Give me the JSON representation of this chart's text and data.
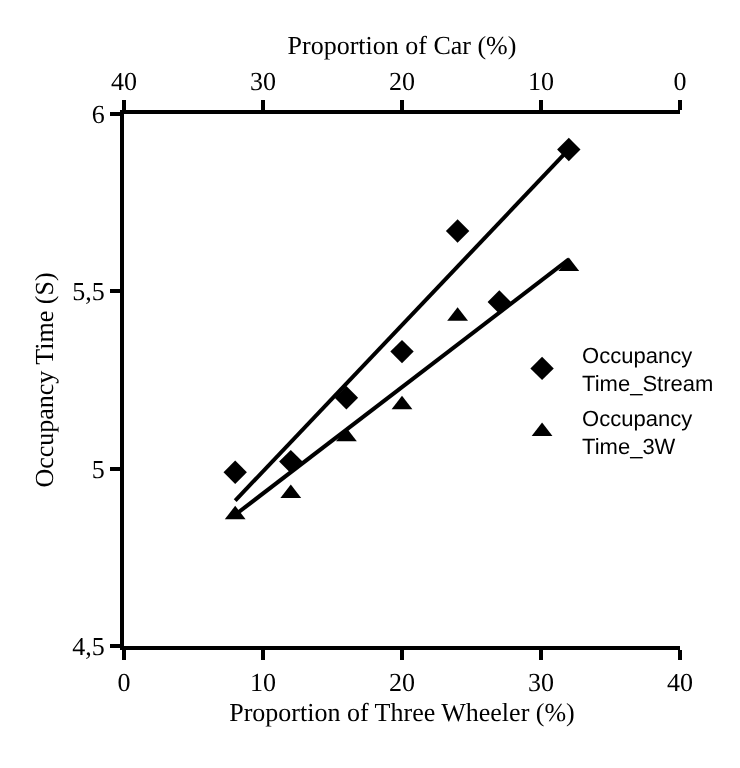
{
  "chart_data": {
    "type": "scatter",
    "xlabel": "Proportion of Three Wheeler (%)",
    "x2label": "Proportion of Car (%)",
    "ylabel": "Occupancy Time (S)",
    "xlim": [
      0,
      40
    ],
    "xticks": [
      0,
      10,
      20,
      30,
      40
    ],
    "x2lim": [
      40,
      0
    ],
    "x2ticks": [
      40,
      30,
      20,
      10,
      0
    ],
    "ylim": [
      4.5,
      6
    ],
    "yticks": [
      {
        "value": 4.5,
        "label": "4,5"
      },
      5,
      {
        "value": 5.5,
        "label": "5,5"
      },
      6
    ],
    "legend": "right",
    "series": [
      {
        "name": "Occupancy Time_Stream",
        "color": "#000000",
        "marker": "diamond",
        "x": [
          8,
          12,
          16,
          20,
          24,
          27,
          32
        ],
        "values": [
          4.99,
          5.02,
          5.2,
          5.33,
          5.67,
          5.47,
          5.9
        ]
      },
      {
        "name": "Occupancy Time_3W",
        "color": "#000000",
        "marker": "triangle",
        "x": [
          8,
          12,
          16,
          20,
          24,
          32
        ],
        "values": [
          4.87,
          4.93,
          5.09,
          5.18,
          5.43,
          5.57
        ]
      },
      {
        "type": "line",
        "color": "#000000",
        "marker": "none",
        "line_style": "solid",
        "x": [
          8,
          32
        ],
        "values": [
          4.91,
          5.9
        ]
      },
      {
        "type": "line",
        "color": "#000000",
        "marker": "none",
        "line_style": "solid",
        "x": [
          8,
          32
        ],
        "values": [
          4.87,
          5.59
        ]
      }
    ]
  }
}
